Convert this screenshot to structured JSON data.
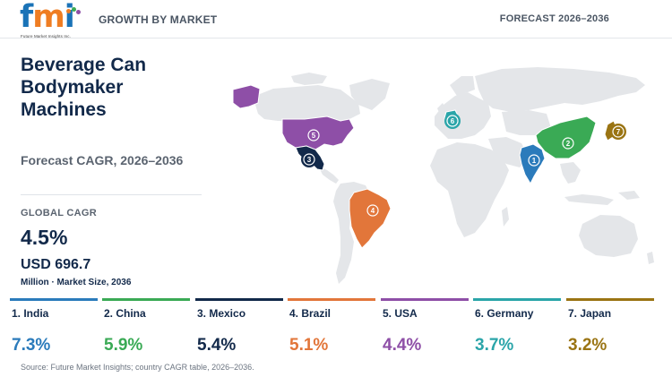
{
  "header": {
    "logo": {
      "f": "f",
      "m": "m",
      "i": "i",
      "tagline": "Future Market Insights Inc."
    },
    "left_label": "GROWTH BY MARKET",
    "right_label": "FORECAST 2026–2036"
  },
  "panel": {
    "title": "Beverage Can Bodymaker Machines",
    "subtitle": "Forecast CAGR, 2026–2036",
    "global_cagr_label": "GLOBAL CAGR",
    "global_cagr_value": "4.5%",
    "market_size_value": "USD 696.7",
    "market_size_label": "Million · Market Size, 2036"
  },
  "colors": {
    "india": "#2b7bbb",
    "china": "#3aaa55",
    "mexico": "#12294a",
    "brazil": "#e2763a",
    "usa": "#8e4fa7",
    "germany": "#2ba5a9",
    "japan": "#9a7413",
    "land": "#e4e6e9"
  },
  "countries": [
    {
      "rank": "1",
      "name": "1. India",
      "cagr": "7.3%",
      "color_key": "india"
    },
    {
      "rank": "2",
      "name": "2. China",
      "cagr": "5.9%",
      "color_key": "china"
    },
    {
      "rank": "3",
      "name": "3. Mexico",
      "cagr": "5.4%",
      "color_key": "mexico"
    },
    {
      "rank": "4",
      "name": "4. Brazil",
      "cagr": "5.1%",
      "color_key": "brazil"
    },
    {
      "rank": "5",
      "name": "5. USA",
      "cagr": "4.4%",
      "color_key": "usa"
    },
    {
      "rank": "6",
      "name": "6. Germany",
      "cagr": "3.7%",
      "color_key": "germany"
    },
    {
      "rank": "7",
      "name": "7. Japan",
      "cagr": "3.2%",
      "color_key": "japan"
    }
  ],
  "source": "Source: Future Market Insights; country CAGR table, 2026–2036."
}
